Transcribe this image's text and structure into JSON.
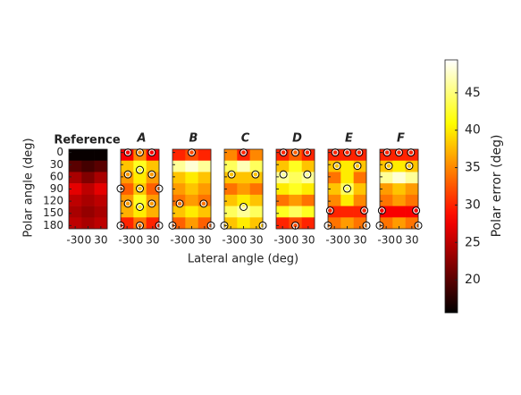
{
  "chart_data": {
    "type": "heatmap",
    "colormap": "hot",
    "xlabel": "Lateral angle (deg)",
    "ylabel": "Polar angle (deg)",
    "xlim": [
      -45,
      45
    ],
    "xticks": [
      -30,
      0,
      30
    ],
    "ylim": [
      -8,
      188
    ],
    "yticks": [
      0,
      30,
      60,
      90,
      120,
      150,
      180
    ],
    "colorbar": {
      "label": "Polar error (deg)",
      "clim": [
        15.6,
        49.4
      ],
      "ticks": [
        20,
        25,
        30,
        35,
        40,
        45
      ]
    },
    "panels": [
      {
        "title": "Reference",
        "values": [
          [
            16,
            16,
            16
          ],
          [
            20,
            19,
            20
          ],
          [
            24,
            22,
            24
          ],
          [
            27,
            25,
            27
          ],
          [
            25,
            24,
            25
          ],
          [
            24,
            23,
            24
          ],
          [
            25,
            24,
            25
          ]
        ],
        "marker_x": [],
        "marker_y": []
      },
      {
        "title": "A",
        "values": [
          [
            28,
            35,
            28
          ],
          [
            38,
            42,
            38
          ],
          [
            36,
            40,
            36
          ],
          [
            33,
            38,
            33
          ],
          [
            36,
            42,
            36
          ],
          [
            37,
            40,
            37
          ],
          [
            30,
            34,
            30
          ]
        ],
        "marker_x": [
          -28,
          0,
          28,
          0,
          -28,
          28,
          -45,
          45,
          0,
          -28,
          28,
          0,
          -45,
          0,
          45
        ],
        "marker_y": [
          0,
          0,
          0,
          43,
          54,
          54,
          89,
          89,
          89,
          126,
          126,
          134,
          180,
          180,
          180
        ]
      },
      {
        "title": "B",
        "values": [
          [
            30,
            32,
            30
          ],
          [
            46,
            48,
            46
          ],
          [
            38,
            40,
            38
          ],
          [
            36,
            38,
            36
          ],
          [
            34,
            36,
            34
          ],
          [
            38,
            40,
            38
          ],
          [
            33,
            36,
            33
          ]
        ],
        "marker_x": [
          0,
          -28,
          28,
          -45,
          45
        ],
        "marker_y": [
          0,
          126,
          126,
          180,
          180
        ]
      },
      {
        "title": "C",
        "values": [
          [
            35,
            30,
            35
          ],
          [
            44,
            47,
            44
          ],
          [
            38,
            38,
            38
          ],
          [
            34,
            36,
            34
          ],
          [
            38,
            40,
            38
          ],
          [
            44,
            46,
            44
          ],
          [
            38,
            40,
            38
          ]
        ],
        "marker_x": [
          0,
          -28,
          28,
          0,
          -45,
          45
        ],
        "marker_y": [
          0,
          54,
          54,
          134,
          180,
          180
        ]
      },
      {
        "title": "D",
        "values": [
          [
            30,
            33,
            30
          ],
          [
            38,
            42,
            38
          ],
          [
            46,
            44,
            46
          ],
          [
            40,
            42,
            40
          ],
          [
            34,
            36,
            34
          ],
          [
            42,
            44,
            42
          ],
          [
            30,
            32,
            30
          ]
        ],
        "marker_x": [
          -28,
          0,
          28,
          -28,
          28,
          0
        ],
        "marker_y": [
          0,
          0,
          0,
          54,
          54,
          180
        ]
      },
      {
        "title": "E",
        "values": [
          [
            30,
            30,
            30
          ],
          [
            38,
            40,
            38
          ],
          [
            34,
            40,
            34
          ],
          [
            38,
            44,
            38
          ],
          [
            35,
            40,
            35
          ],
          [
            30,
            30,
            30
          ],
          [
            34,
            36,
            34
          ]
        ],
        "marker_x": [
          -28,
          0,
          28,
          -24,
          24,
          0,
          -40,
          40,
          -45,
          45
        ],
        "marker_y": [
          0,
          0,
          0,
          33,
          33,
          89,
          143,
          143,
          180,
          180
        ]
      },
      {
        "title": "F",
        "values": [
          [
            30,
            30,
            30
          ],
          [
            38,
            40,
            38
          ],
          [
            46,
            48,
            46
          ],
          [
            36,
            38,
            36
          ],
          [
            34,
            36,
            34
          ],
          [
            28,
            28,
            28
          ],
          [
            34,
            36,
            34
          ]
        ],
        "marker_x": [
          -28,
          0,
          28,
          -24,
          24,
          -40,
          40,
          -45,
          45
        ],
        "marker_y": [
          0,
          0,
          0,
          33,
          33,
          143,
          143,
          180,
          180
        ]
      }
    ]
  }
}
